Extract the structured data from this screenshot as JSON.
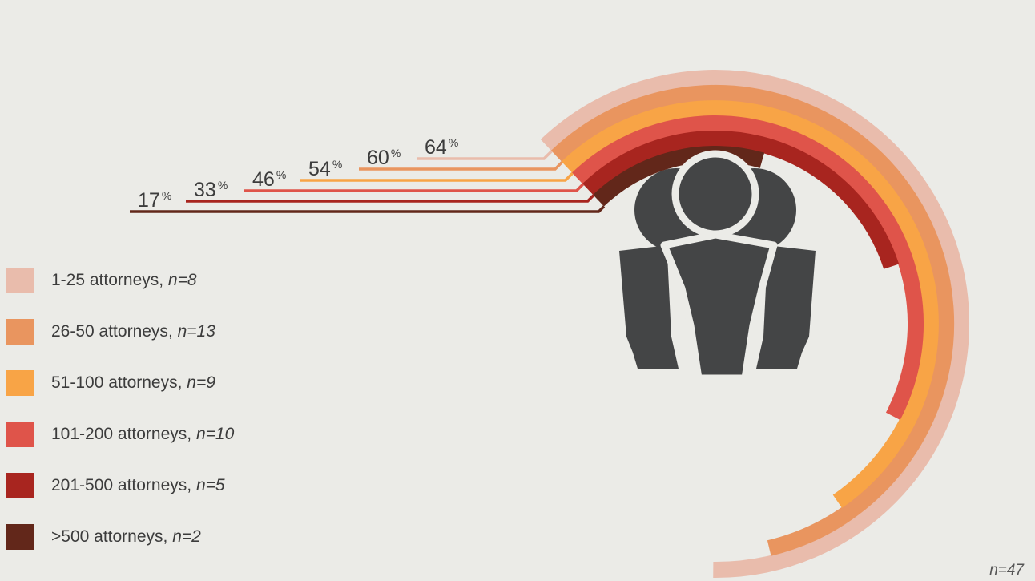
{
  "chart_data": {
    "type": "radial-bar",
    "unit": "%",
    "categories": [
      "1-25 attorneys",
      "26-50 attorneys",
      "51-100 attorneys",
      "101-200 attorneys",
      "201-500 attorneys",
      ">500 attorneys"
    ],
    "series": [
      {
        "values": [
          64,
          60,
          54,
          46,
          33,
          17
        ],
        "n_labels": [
          "n=8",
          "n=13",
          "n=9",
          "n=10",
          "n=5",
          "n=2"
        ],
        "colors": [
          "#e9bcac",
          "#e9955f",
          "#f8a446",
          "#df544a",
          "#a8251f",
          "#62271a"
        ]
      }
    ],
    "legend_position": "left",
    "total_n": "n=47",
    "center_icon": "group-of-people-icon"
  }
}
